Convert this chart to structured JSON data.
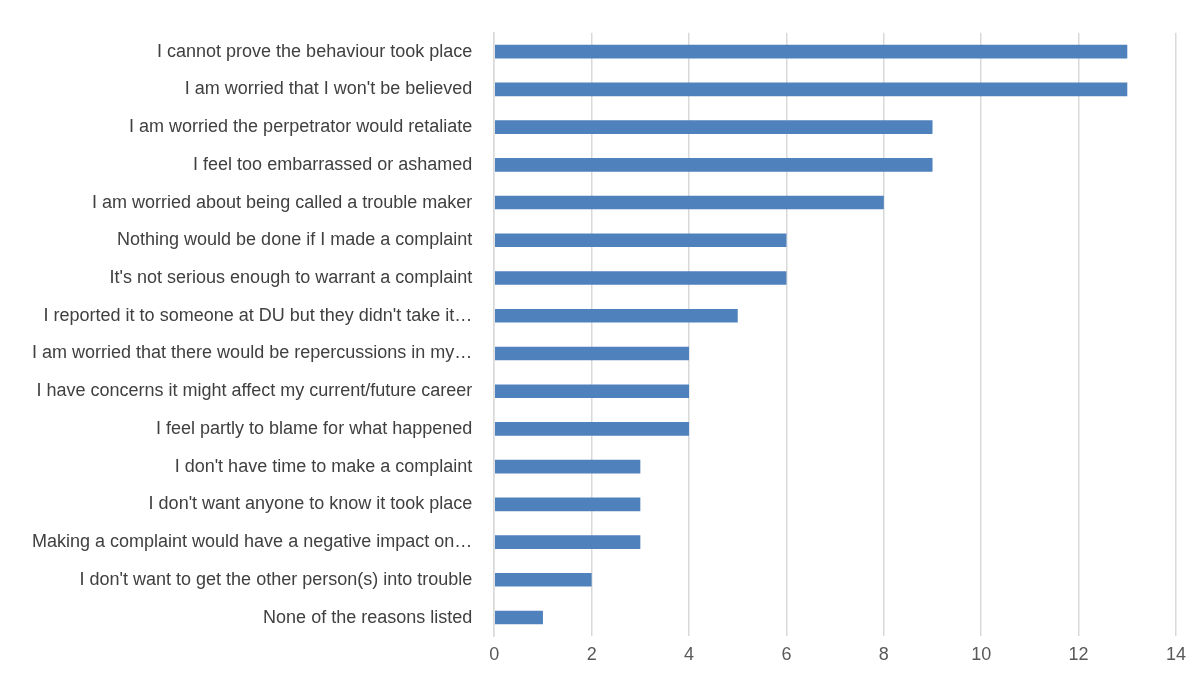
{
  "chart_data": {
    "type": "bar",
    "orientation": "horizontal",
    "categories": [
      "I cannot prove the behaviour took place",
      "I am worried that I won't be believed",
      "I am worried the perpetrator would retaliate",
      "I feel too embarrassed or ashamed",
      "I am worried about being called a trouble maker",
      "Nothing would be done if I made a complaint",
      "It's not serious enough to warrant a complaint",
      "I reported it to someone at DU but they didn't take it…",
      "I am worried that there would be repercussions in my…",
      "I have concerns it might affect my current/future career",
      "I feel partly to blame for what happened",
      "I don't have time to make a complaint",
      "I don't want anyone to know it took place",
      "Making a complaint would have a negative impact on…",
      "I don't want to get the other person(s) into trouble",
      "None of the reasons listed"
    ],
    "values": [
      13,
      13,
      9,
      9,
      8,
      6,
      6,
      5,
      4,
      4,
      4,
      3,
      3,
      3,
      2,
      1
    ],
    "color": "#4f81bd",
    "xlim": [
      0,
      14
    ],
    "xticks": [
      0,
      2,
      4,
      6,
      8,
      10,
      12,
      14
    ],
    "grid": "x",
    "legend": false
  }
}
